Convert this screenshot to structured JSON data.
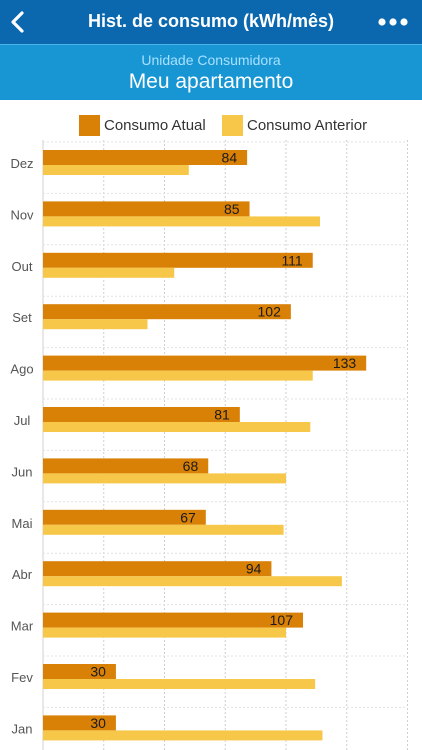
{
  "header": {
    "title": "Hist. de consumo (kWh/mês)",
    "back_icon": "back-chevron-icon",
    "more_icon": "more-dots-icon"
  },
  "unit": {
    "label": "Unidade Consumidora",
    "name": "Meu apartamento"
  },
  "colors": {
    "topbar": "#0b67ae",
    "subbar": "#1896d4",
    "current": "#d98006",
    "previous": "#f6c748"
  },
  "chart_data": {
    "type": "bar",
    "orientation": "horizontal",
    "categories": [
      "Dez",
      "Nov",
      "Out",
      "Set",
      "Ago",
      "Jul",
      "Jun",
      "Mai",
      "Abr",
      "Mar",
      "Fev",
      "Jan"
    ],
    "series": [
      {
        "name": "Consumo Atual",
        "values": [
          84,
          85,
          111,
          102,
          133,
          81,
          68,
          67,
          94,
          107,
          30,
          30
        ]
      },
      {
        "name": "Consumo Anterior",
        "values": [
          60,
          114,
          54,
          43,
          111,
          110,
          100,
          99,
          123,
          100,
          112,
          115
        ]
      }
    ],
    "data_labels": [
      "84",
      "85",
      "111",
      "102",
      "133",
      "81",
      "68",
      "67",
      "94",
      "107",
      "30",
      "30"
    ],
    "xlim": [
      0,
      150
    ],
    "grid": true,
    "legend": "top"
  }
}
